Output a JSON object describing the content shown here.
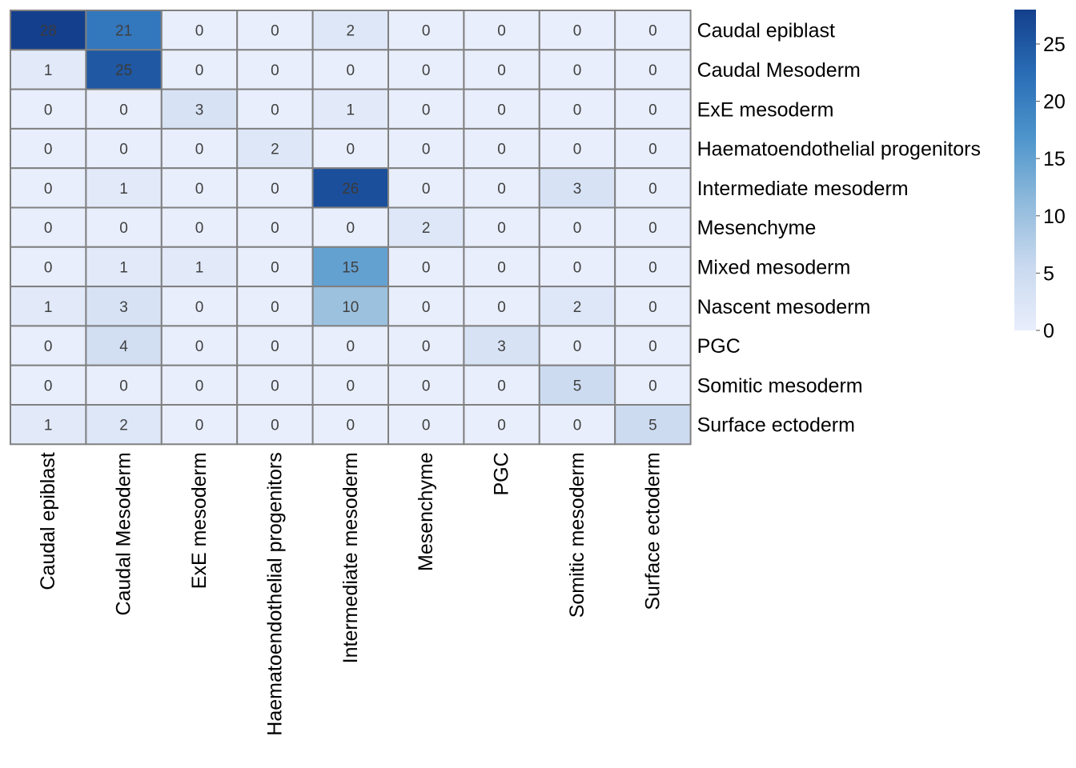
{
  "chart_data": {
    "type": "heatmap",
    "rows": [
      "Caudal epiblast",
      "Caudal Mesoderm",
      "ExE mesoderm",
      "Haematoendothelial progenitors",
      "Intermediate mesoderm",
      "Mesenchyme",
      "Mixed mesoderm",
      "Nascent mesoderm",
      "PGC",
      "Somitic mesoderm",
      "Surface ectoderm"
    ],
    "columns": [
      "Caudal epiblast",
      "Caudal Mesoderm",
      "ExE mesoderm",
      "Haematoendothelial progenitors",
      "Intermediate mesoderm",
      "Mesenchyme",
      "PGC",
      "Somitic mesoderm",
      "Surface ectoderm"
    ],
    "values": [
      [
        28,
        21,
        0,
        0,
        2,
        0,
        0,
        0,
        0
      ],
      [
        1,
        25,
        0,
        0,
        0,
        0,
        0,
        0,
        0
      ],
      [
        0,
        0,
        3,
        0,
        1,
        0,
        0,
        0,
        0
      ],
      [
        0,
        0,
        0,
        2,
        0,
        0,
        0,
        0,
        0
      ],
      [
        0,
        1,
        0,
        0,
        26,
        0,
        0,
        3,
        0
      ],
      [
        0,
        0,
        0,
        0,
        0,
        2,
        0,
        0,
        0
      ],
      [
        0,
        1,
        1,
        0,
        15,
        0,
        0,
        0,
        0
      ],
      [
        1,
        3,
        0,
        0,
        10,
        0,
        0,
        2,
        0
      ],
      [
        0,
        4,
        0,
        0,
        0,
        0,
        3,
        0,
        0
      ],
      [
        0,
        0,
        0,
        0,
        0,
        0,
        0,
        5,
        0
      ],
      [
        1,
        2,
        0,
        0,
        0,
        0,
        0,
        0,
        5
      ]
    ],
    "colorbar": {
      "ticks": [
        0,
        5,
        10,
        15,
        20,
        25
      ],
      "range": [
        0,
        28
      ],
      "color_low": "#e8eefc",
      "color_high": "#143f8c"
    },
    "legend_placement": "right",
    "grid_color": "#808080"
  }
}
